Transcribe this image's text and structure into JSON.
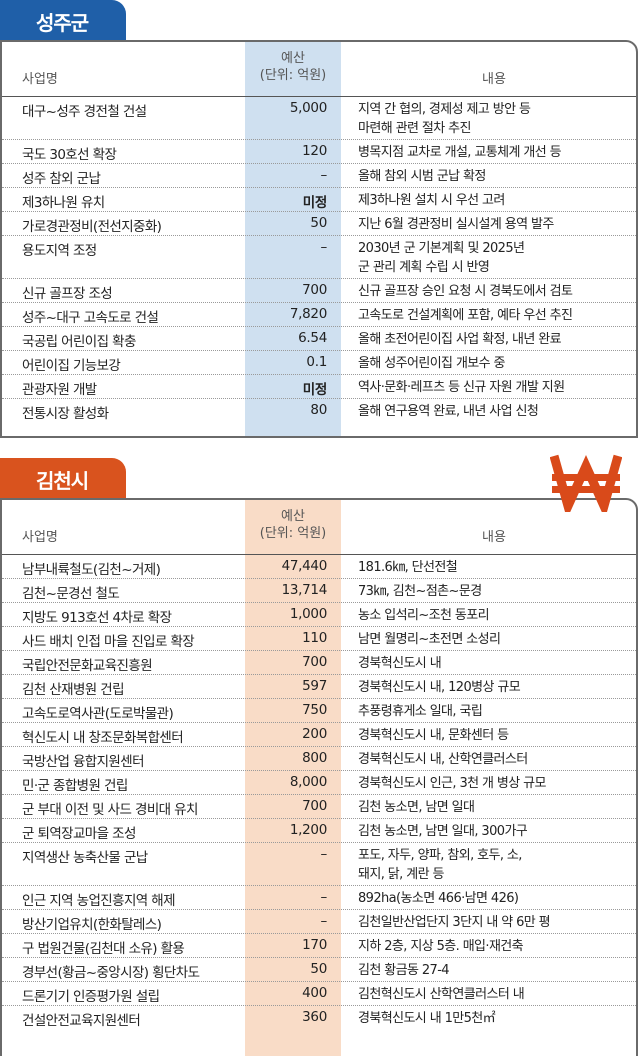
{
  "colors": {
    "blue_tab": "#1f5fa8",
    "orange_tab": "#d9531e",
    "blue_col": "#cfe0f0",
    "orange_col": "#f9dcc7",
    "won_icon": "#d94a1a"
  },
  "headers": {
    "name": "사업명",
    "budget_1": "예산",
    "budget_2": "(단위: 억원)",
    "content": "내용"
  },
  "seongju": {
    "title": "성주군",
    "rows": [
      {
        "name": "대구~성주 경전철 건설",
        "budget": "5,000",
        "content_1": "지역 간 협의, 경제성 제고 방안 등",
        "content_2": "마련해 관련 절차 추진"
      },
      {
        "name": "국도 30호선 확장",
        "budget": "120",
        "content_1": "병목지점 교차로 개설, 교통체계 개선 등"
      },
      {
        "name": "성주 참외 군납",
        "budget": "–",
        "content_1": "올해 참외 시범 군납 확정"
      },
      {
        "name": "제3하나원 유치",
        "budget": "미정",
        "content_1": "제3하나원 설치 시 우선 고려"
      },
      {
        "name": "가로경관정비(전선지중화)",
        "budget": "50",
        "content_1": "지난 6월 경관정비 실시설계 용역 발주"
      },
      {
        "name": "용도지역 조정",
        "budget": "–",
        "content_1": "2030년 군 기본계획 및 2025년",
        "content_2": "군 관리 계획 수립 시 반영"
      },
      {
        "name": "신규 골프장 조성",
        "budget": "700",
        "content_1": "신규 골프장 승인 요청 시 경북도에서 검토"
      },
      {
        "name": "성주~대구 고속도로 건설",
        "budget": "7,820",
        "content_1": "고속도로 건설계획에 포함, 예타 우선 추진"
      },
      {
        "name": "국공립 어린이집 확충",
        "budget": "6.54",
        "content_1": "올해 초전어린이집 사업 확정, 내년 완료"
      },
      {
        "name": "어린이집 기능보강",
        "budget": "0.1",
        "content_1": "올해 성주어린이집 개보수 중"
      },
      {
        "name": "관광자원 개발",
        "budget": "미정",
        "content_1": "역사·문화·레프츠 등 신규 자원 개발 지원"
      },
      {
        "name": "전통시장 활성화",
        "budget": "80",
        "content_1": "올해 연구용역 완료, 내년 사업 신청"
      }
    ]
  },
  "gimcheon": {
    "title": "김천시",
    "icon": "won-sign-icon",
    "rows": [
      {
        "name": "남부내륙철도(김천~거제)",
        "budget": "47,440",
        "content_1": "181.6㎞, 단선전철"
      },
      {
        "name": "김천~문경선 철도",
        "budget": "13,714",
        "content_1": "73㎞, 김천~점촌~문경"
      },
      {
        "name": "지방도 913호선 4차로 확장",
        "budget": "1,000",
        "content_1": "농소 입석리~조천 동포리"
      },
      {
        "name": "사드 배치 인접 마을 진입로 확장",
        "budget": "110",
        "content_1": "남면 월명리~초전면 소성리"
      },
      {
        "name": "국립안전문화교육진흥원",
        "budget": "700",
        "content_1": "경북혁신도시 내"
      },
      {
        "name": "김천 산재병원 건립",
        "budget": "597",
        "content_1": "경북혁신도시 내, 120병상 규모"
      },
      {
        "name": "고속도로역사관(도로박물관)",
        "budget": "750",
        "content_1": "추풍령휴게소 일대, 국립"
      },
      {
        "name": "혁신도시 내 창조문화복합센터",
        "budget": "200",
        "content_1": "경북혁신도시 내, 문화센터 등"
      },
      {
        "name": "국방산업 융합지원센터",
        "budget": "800",
        "content_1": "경북혁신도시 내, 산학연클러스터"
      },
      {
        "name": "민·군 종합병원 건립",
        "budget": "8,000",
        "content_1": "경북혁신도시 인근, 3천 개 병상 규모"
      },
      {
        "name": "군 부대 이전 및 사드 경비대 유치",
        "budget": "700",
        "content_1": "김천 농소면, 남면 일대"
      },
      {
        "name": "군 퇴역장교마을 조성",
        "budget": "1,200",
        "content_1": "김천 농소면, 남면 일대, 300가구"
      },
      {
        "name": "지역생산 농축산물 군납",
        "budget": "–",
        "content_1": "포도, 자두, 양파, 참외, 호두, 소,",
        "content_2": "돼지, 닭, 계란 등"
      },
      {
        "name": "인근 지역 농업진흥지역 해제",
        "budget": "–",
        "content_1": "892ha(농소면 466·남면 426)"
      },
      {
        "name": "방산기업유치(한화탈레스)",
        "budget": "–",
        "content_1": "김천일반산업단지 3단지 내 약 6만 평"
      },
      {
        "name": "구 법원건물(김천대 소유) 활용",
        "budget": "170",
        "content_1": "지하 2층, 지상 5층. 매입·재건축"
      },
      {
        "name": "경부선(황금~중앙시장) 횡단차도",
        "budget": "50",
        "content_1": "김천 황금동 27-4"
      },
      {
        "name": "드론기기 인증평가원 설립",
        "budget": "400",
        "content_1": "김천혁신도시 산학연클러스터 내"
      },
      {
        "name": "건설안전교육지원센터",
        "budget": "360",
        "content_1": "경북혁신도시 내 1만5천㎡"
      }
    ]
  }
}
